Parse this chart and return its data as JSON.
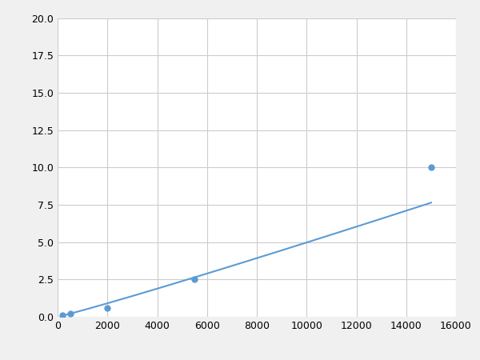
{
  "x": [
    200,
    500,
    2000,
    5500,
    15000
  ],
  "y": [
    0.1,
    0.2,
    0.6,
    2.5,
    10.0
  ],
  "line_color": "#5b9bd5",
  "marker_color": "#5b9bd5",
  "marker_size": 5,
  "line_width": 1.5,
  "xlim": [
    0,
    16000
  ],
  "ylim": [
    0,
    20.0
  ],
  "xticks": [
    0,
    2000,
    4000,
    6000,
    8000,
    10000,
    12000,
    14000,
    16000
  ],
  "yticks": [
    0.0,
    2.5,
    5.0,
    7.5,
    10.0,
    12.5,
    15.0,
    17.5,
    20.0
  ],
  "grid_color": "#cccccc",
  "background_color": "#ffffff",
  "figure_bg": "#f0f0f0"
}
